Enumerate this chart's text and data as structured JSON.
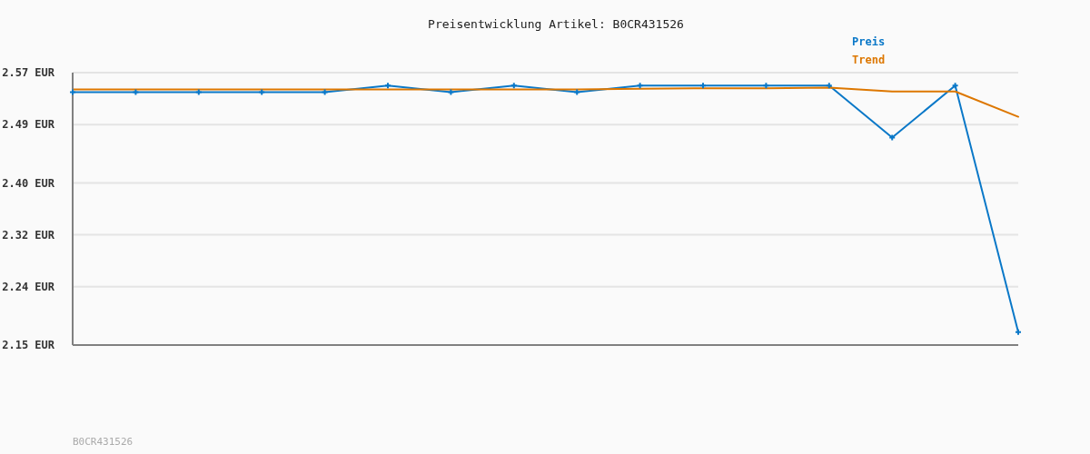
{
  "chart_data": {
    "type": "line",
    "title": "Preisentwicklung Artikel: B0CR431526",
    "categories": [
      null,
      null,
      null,
      null,
      null,
      null,
      null,
      null,
      null,
      null,
      null,
      null,
      null,
      null,
      null,
      null
    ],
    "series": [
      {
        "name": "Preis",
        "color": "#0a78c8",
        "marker": "cross",
        "values": [
          2.54,
          2.54,
          2.54,
          2.54,
          2.54,
          2.55,
          2.54,
          2.55,
          2.54,
          2.55,
          2.55,
          2.55,
          2.55,
          2.47,
          2.55,
          2.17
        ]
      },
      {
        "name": "Trend",
        "color": "#dd7700",
        "marker": "none",
        "values": [
          2.544,
          2.544,
          2.544,
          2.544,
          2.544,
          2.544,
          2.544,
          2.544,
          2.544,
          2.545,
          2.546,
          2.546,
          2.547,
          2.541,
          2.541,
          2.502
        ]
      }
    ],
    "ylim": [
      2.15,
      2.57
    ],
    "yticks": [
      {
        "value": 2.15,
        "label": "2.15 EUR"
      },
      {
        "value": 2.24,
        "label": "2.24 EUR"
      },
      {
        "value": 2.32,
        "label": "2.32 EUR"
      },
      {
        "value": 2.4,
        "label": "2.40 EUR"
      },
      {
        "value": 2.49,
        "label": "2.49 EUR"
      },
      {
        "value": 2.57,
        "label": "2.57 EUR"
      }
    ],
    "grid": "y",
    "legend": "top right",
    "tick_labels": "y",
    "line_style": "solid",
    "annotations": [
      "B0CR431526"
    ]
  }
}
